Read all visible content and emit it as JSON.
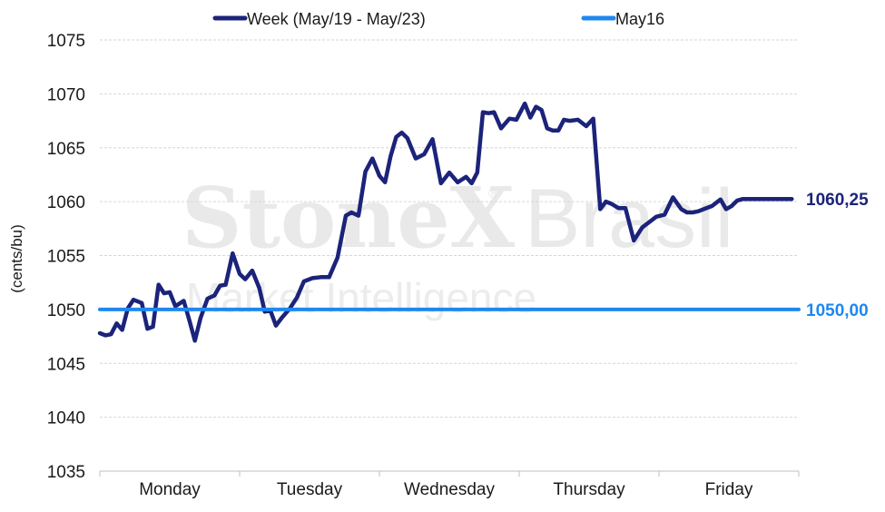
{
  "watermark": {
    "brand": "StoneX",
    "reg": "®",
    "country": "Brasil",
    "sub": "Market Intelligence"
  },
  "chart_data": {
    "type": "line",
    "ylabel": "(cents/bu)",
    "ylim": [
      1035,
      1075
    ],
    "yticks": [
      1035,
      1040,
      1045,
      1050,
      1055,
      1060,
      1065,
      1070,
      1075
    ],
    "categories": [
      "Monday",
      "Tuesday",
      "Wednesday",
      "Thursday",
      "Friday"
    ],
    "grid": true,
    "legend_position": "top",
    "series": [
      {
        "name": "Week (May/19 - May/23)",
        "color": "#1b237a",
        "x": [
          0.0,
          0.04,
          0.08,
          0.12,
          0.16,
          0.2,
          0.24,
          0.3,
          0.34,
          0.38,
          0.42,
          0.46,
          0.5,
          0.54,
          0.6,
          0.64,
          0.68,
          0.72,
          0.77,
          0.82,
          0.86,
          0.9,
          0.95,
          1.0,
          1.04,
          1.09,
          1.14,
          1.18,
          1.22,
          1.26,
          1.3,
          1.36,
          1.41,
          1.46,
          1.52,
          1.58,
          1.64,
          1.7,
          1.76,
          1.8,
          1.85,
          1.9,
          1.95,
          2.0,
          2.04,
          2.08,
          2.12,
          2.16,
          2.2,
          2.26,
          2.32,
          2.38,
          2.44,
          2.5,
          2.56,
          2.62,
          2.66,
          2.7,
          2.74,
          2.78,
          2.82,
          2.87,
          2.93,
          2.98,
          3.04,
          3.08,
          3.12,
          3.16,
          3.2,
          3.24,
          3.28,
          3.32,
          3.36,
          3.42,
          3.48,
          3.53,
          3.58,
          3.62,
          3.66,
          3.71,
          3.76,
          3.82,
          3.88,
          3.94,
          3.98,
          4.04,
          4.1,
          4.16,
          4.2,
          4.24,
          4.28,
          4.32,
          4.38,
          4.44,
          4.48,
          4.52,
          4.56,
          4.6,
          4.66,
          4.72,
          4.76,
          4.8,
          4.84,
          4.9,
          4.95
        ],
        "values": [
          1047.8,
          1047.6,
          1047.7,
          1048.7,
          1048.1,
          1050.1,
          1050.9,
          1050.6,
          1048.2,
          1048.4,
          1052.3,
          1051.5,
          1051.6,
          1050.3,
          1050.8,
          1049.0,
          1047.1,
          1049.2,
          1051.0,
          1051.3,
          1052.2,
          1052.3,
          1055.2,
          1053.3,
          1052.8,
          1053.6,
          1052.0,
          1049.8,
          1049.9,
          1048.5,
          1049.2,
          1050.1,
          1051.1,
          1052.6,
          1052.9,
          1053.0,
          1053.0,
          1054.8,
          1058.7,
          1059.0,
          1058.7,
          1062.8,
          1064.0,
          1062.4,
          1061.8,
          1064.2,
          1066.0,
          1066.4,
          1065.9,
          1064.0,
          1064.4,
          1065.8,
          1061.7,
          1062.7,
          1061.8,
          1062.3,
          1061.7,
          1062.7,
          1068.3,
          1068.2,
          1068.3,
          1066.8,
          1067.7,
          1067.6,
          1069.1,
          1067.8,
          1068.8,
          1068.5,
          1066.8,
          1066.6,
          1066.6,
          1067.6,
          1067.5,
          1067.6,
          1067.0,
          1067.7,
          1059.3,
          1060.0,
          1059.8,
          1059.4,
          1059.4,
          1056.4,
          1057.6,
          1058.2,
          1058.6,
          1058.8,
          1060.4,
          1059.3,
          1059.0,
          1059.0,
          1059.1,
          1059.3,
          1059.6,
          1060.2,
          1059.3,
          1059.6,
          1060.1,
          1060.25,
          1060.25,
          1060.25,
          1060.25,
          1060.25,
          1060.25,
          1060.25,
          1060.25
        ],
        "last_label": "1060,25"
      },
      {
        "name": "May16",
        "color": "#1e88f0",
        "x": [
          0.0,
          5.0
        ],
        "values": [
          1050.0,
          1050.0
        ],
        "last_label": "1050,00"
      }
    ]
  }
}
